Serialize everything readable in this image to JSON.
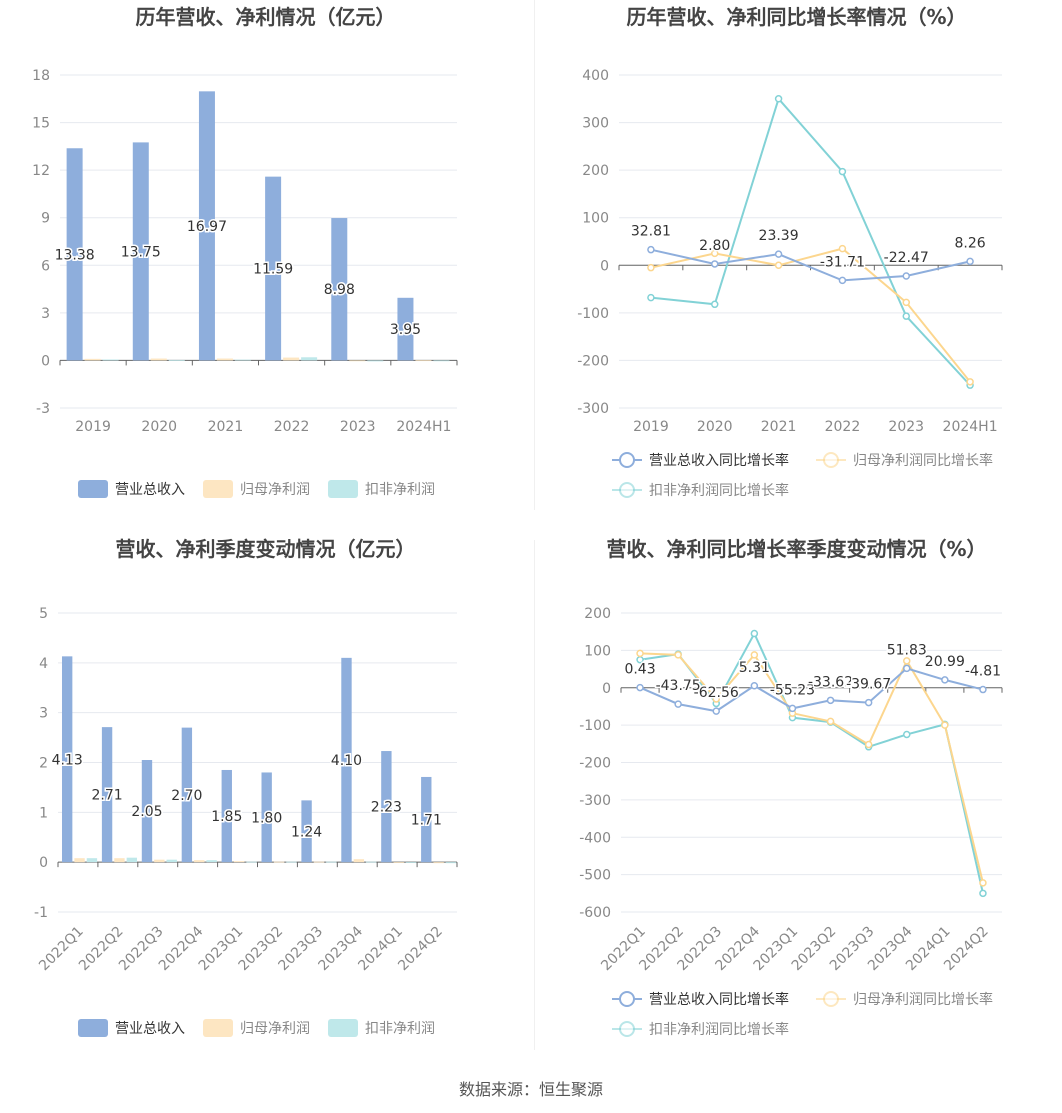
{
  "source": "数据来源：恒生聚源",
  "colors": {
    "revenue": "#8eaedc",
    "net_profit": "#fde6c2",
    "deducted": "#bfe8ea",
    "rev_line": "#8eaedc",
    "np_line": "#fcd68e",
    "ded_line": "#82d2d6"
  },
  "chart_data": [
    {
      "type": "bar",
      "title": "历年营收、净利情况（亿元）",
      "categories": [
        "2019",
        "2020",
        "2021",
        "2022",
        "2023",
        "2024H1"
      ],
      "ylim": [
        -3,
        18
      ],
      "yticks": [
        -3,
        0,
        3,
        6,
        9,
        12,
        15,
        18
      ],
      "series": [
        {
          "name": "营业总收入",
          "values": [
            13.38,
            13.75,
            16.97,
            11.59,
            8.98,
            3.95
          ],
          "labels": [
            "13.38",
            "13.75",
            "16.97",
            "11.59",
            "8.98",
            "3.95"
          ]
        },
        {
          "name": "归母净利润",
          "values": [
            0.1,
            0.12,
            0.12,
            0.18,
            -0.05,
            0.01
          ]
        },
        {
          "name": "扣非净利润",
          "values": [
            0.06,
            0.03,
            0.05,
            0.2,
            -0.06,
            0.0
          ]
        }
      ],
      "legend": "bottom"
    },
    {
      "type": "line",
      "title": "历年营收、净利同比增长率情况（%）",
      "categories": [
        "2019",
        "2020",
        "2021",
        "2022",
        "2023",
        "2024H1"
      ],
      "ylim": [
        -300,
        400
      ],
      "yticks": [
        -300,
        -200,
        -100,
        0,
        100,
        200,
        300,
        400
      ],
      "series": [
        {
          "name": "营业总收入同比增长率",
          "values": [
            32.81,
            2.8,
            23.39,
            -31.71,
            -22.47,
            8.26
          ],
          "labels": [
            "32.81",
            "2.80",
            "23.39",
            "-31.71",
            "-22.47",
            "8.26"
          ]
        },
        {
          "name": "归母净利润同比增长率",
          "values": [
            -5,
            25,
            0,
            35,
            -78,
            -245
          ]
        },
        {
          "name": "扣非净利润同比增长率",
          "values": [
            -68,
            -82,
            350,
            197,
            -107,
            -252
          ]
        }
      ],
      "legend": "bottom"
    },
    {
      "type": "bar",
      "title": "营收、净利季度变动情况（亿元）",
      "categories": [
        "2022Q1",
        "2022Q2",
        "2022Q3",
        "2022Q4",
        "2023Q1",
        "2023Q2",
        "2023Q3",
        "2023Q4",
        "2024Q1",
        "2024Q2"
      ],
      "ylim": [
        -1,
        5
      ],
      "yticks": [
        -1,
        0,
        1,
        2,
        3,
        4,
        5
      ],
      "series": [
        {
          "name": "营业总收入",
          "values": [
            4.13,
            2.71,
            2.05,
            2.7,
            1.85,
            1.8,
            1.24,
            4.1,
            2.23,
            1.71
          ],
          "labels": [
            "4.13",
            "2.71",
            "2.05",
            "2.70",
            "1.85",
            "1.80",
            "1.24",
            "4.10",
            "2.23",
            "1.71"
          ]
        },
        {
          "name": "归母净利润",
          "values": [
            0.08,
            0.08,
            0.05,
            0.04,
            0.02,
            0.01,
            0.01,
            0.06,
            0.0,
            -0.02
          ]
        },
        {
          "name": "扣非净利润",
          "values": [
            0.08,
            0.09,
            0.05,
            0.04,
            0.01,
            0.01,
            0.01,
            0.01,
            0.0,
            -0.02
          ]
        }
      ],
      "legend": "bottom"
    },
    {
      "type": "line",
      "title": "营收、净利同比增长率季度变动情况（%）",
      "categories": [
        "2022Q1",
        "2022Q2",
        "2022Q3",
        "2022Q4",
        "2023Q1",
        "2023Q2",
        "2023Q3",
        "2023Q4",
        "2024Q1",
        "2024Q2"
      ],
      "ylim": [
        -600,
        200
      ],
      "yticks": [
        -600,
        -500,
        -400,
        -300,
        -200,
        -100,
        0,
        100,
        200
      ],
      "series": [
        {
          "name": "营业总收入同比增长率",
          "values": [
            0.43,
            -43.75,
            -62.56,
            5.31,
            -55.23,
            -33.62,
            -39.67,
            51.83,
            20.99,
            -4.81
          ],
          "labels": [
            "0.43",
            "-43.75",
            "-62.56",
            "5.31",
            "-55.23",
            "-33.62",
            "-39.67",
            "51.83",
            "20.99",
            "-4.81"
          ]
        },
        {
          "name": "归母净利润同比增长率",
          "values": [
            92,
            88,
            -30,
            88,
            -68,
            -90,
            -152,
            72,
            -100,
            -522
          ]
        },
        {
          "name": "扣非净利润同比增长率",
          "values": [
            75,
            90,
            -42,
            145,
            -80,
            -92,
            -158,
            -125,
            -98,
            -550
          ]
        }
      ],
      "legend": "bottom"
    }
  ]
}
